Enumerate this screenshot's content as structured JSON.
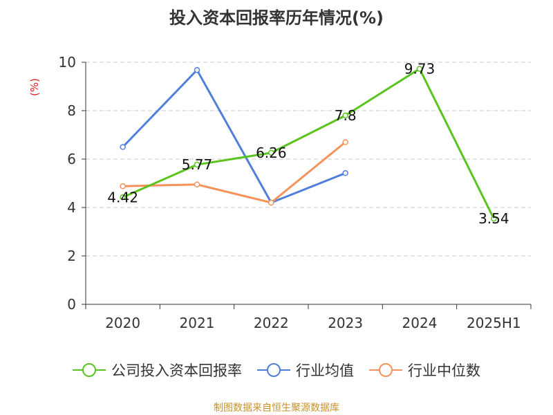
{
  "title": "投入资本回报率历年情况(%)",
  "source": "制图数据来自恒生聚源数据库",
  "colors": {
    "company": "#5ac41e",
    "industry_avg": "#4f7fd8",
    "industry_median": "#f5925a",
    "grid": "#c8c8c8",
    "axis": "#333333",
    "ylabel": "#e41a1c",
    "source": "#c8912c"
  },
  "chart_data": {
    "type": "line",
    "title": "投入资本回报率历年情况(%)",
    "xlabel": "",
    "ylabel": "(%)",
    "ylim": [
      0,
      10
    ],
    "yticks": [
      0,
      2,
      4,
      6,
      8,
      10
    ],
    "categories": [
      "2020",
      "2021",
      "2022",
      "2023",
      "2024",
      "2025H1"
    ],
    "grid": true,
    "legend": "bottom",
    "series": [
      {
        "name": "公司投入资本回报率",
        "values": [
          4.42,
          5.77,
          6.26,
          7.8,
          9.73,
          3.54
        ],
        "show_labels": true
      },
      {
        "name": "行业均值",
        "values": [
          6.5,
          9.68,
          4.2,
          5.42,
          null,
          null
        ],
        "show_labels": false
      },
      {
        "name": "行业中位数",
        "values": [
          4.88,
          4.95,
          4.2,
          6.7,
          null,
          null
        ],
        "show_labels": false
      }
    ]
  }
}
